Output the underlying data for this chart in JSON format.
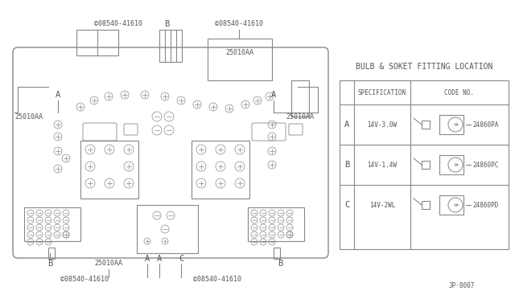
{
  "bg_color": "#ffffff",
  "line_color": "#888888",
  "dark_color": "#555555",
  "title_table": "BULB & SOKET FITTING LOCATION",
  "rows": [
    {
      "label": "A",
      "spec": "14V-3.0W",
      "code": "24860PA"
    },
    {
      "label": "B",
      "spec": "14V-1.4W",
      "code": "24860PC"
    },
    {
      "label": "C",
      "spec": "14V-2WL",
      "code": "24860PD"
    }
  ],
  "footnote": "JP·8007",
  "fig_w": 6.4,
  "fig_h": 3.72,
  "dpi": 100
}
